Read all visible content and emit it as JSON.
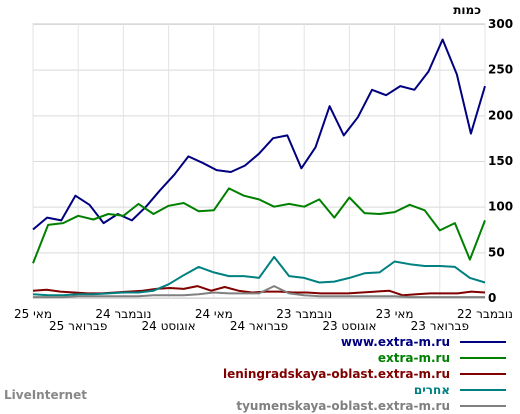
{
  "watermark": "LiveInternet",
  "chart_data": {
    "type": "line",
    "ylabel": "כמות",
    "ylim": [
      0,
      300
    ],
    "yticks": [
      0,
      50,
      100,
      150,
      200,
      250,
      300
    ],
    "grid": true,
    "legend_position": "bottom-right",
    "x_tick_labels": [
      "נובמבר 22",
      "פברואר 23",
      "מאי 23",
      "אוגוסט 23",
      "נובמבר 23",
      "פברואר 24",
      "מאי 24",
      "אוגוסט 24",
      "נובמבר 24",
      "פברואר 25",
      "מאי 25"
    ],
    "x_tick_rows": [
      0,
      1,
      0,
      1,
      0,
      1,
      0,
      1,
      0,
      1,
      0
    ],
    "series_order_note": "values listed oldest (right) to newest (left)",
    "series": [
      {
        "name": "www.extra-m.ru",
        "color": "#000080",
        "values": [
          232,
          180,
          245,
          283,
          248,
          228,
          232,
          222,
          228,
          198,
          178,
          210,
          165,
          142,
          178,
          175,
          158,
          145,
          138,
          140,
          148,
          155,
          135,
          118,
          100,
          85,
          92,
          82,
          102,
          112,
          85,
          88,
          75
        ]
      },
      {
        "name": "extra-m.ru",
        "color": "#008000",
        "values": [
          85,
          42,
          82,
          74,
          96,
          102,
          94,
          92,
          93,
          110,
          88,
          108,
          100,
          103,
          100,
          108,
          112,
          120,
          96,
          95,
          104,
          101,
          92,
          103,
          90,
          92,
          86,
          90,
          82,
          80,
          38
        ]
      },
      {
        "name": "leningradskaya-oblast.extra-m.ru",
        "color": "#800000",
        "values": [
          6,
          7,
          5,
          5,
          5,
          4,
          3,
          8,
          7,
          6,
          5,
          5,
          5,
          6,
          6,
          7,
          7,
          6,
          8,
          12,
          8,
          13,
          10,
          11,
          10,
          8,
          7,
          6,
          5,
          5,
          6,
          7,
          9,
          8
        ]
      },
      {
        "name": "אחרים",
        "color": "#008080",
        "values": [
          17,
          22,
          34,
          35,
          35,
          37,
          40,
          28,
          27,
          22,
          18,
          17,
          22,
          24,
          45,
          22,
          24,
          24,
          28,
          34,
          25,
          15,
          8,
          6,
          6,
          5,
          4,
          4,
          3,
          3,
          4
        ]
      },
      {
        "name": "tyumenskaya-oblast.extra-m.ru",
        "color": "#808080",
        "values": [
          1,
          1,
          1,
          1,
          1,
          1,
          2,
          2,
          2,
          2,
          2,
          2,
          3,
          5,
          13,
          5,
          5,
          5,
          6,
          4,
          3,
          3,
          3,
          2,
          2,
          2,
          2,
          2,
          1,
          1,
          1
        ]
      }
    ]
  }
}
